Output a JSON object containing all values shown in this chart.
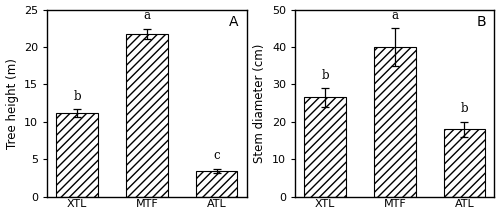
{
  "panel_A": {
    "label": "A",
    "categories": [
      "XTL",
      "MTF",
      "ATL"
    ],
    "values": [
      11.2,
      21.7,
      3.4
    ],
    "errors": [
      0.5,
      0.7,
      0.3
    ],
    "letters": [
      "b",
      "a",
      "c"
    ],
    "ylabel": "Tree height (m)",
    "ylim": [
      0,
      25
    ],
    "yticks": [
      0,
      5,
      10,
      15,
      20,
      25
    ]
  },
  "panel_B": {
    "label": "B",
    "categories": [
      "XTL",
      "MTF",
      "ATL"
    ],
    "values": [
      26.5,
      40.0,
      18.0
    ],
    "errors": [
      2.5,
      5.0,
      2.0
    ],
    "letters": [
      "b",
      "a",
      "b"
    ],
    "ylabel": "Stem diameter (cm)",
    "ylim": [
      0,
      50
    ],
    "yticks": [
      0,
      10,
      20,
      30,
      40,
      50
    ]
  },
  "bar_color": "#ffffff",
  "hatch": "////",
  "edgecolor": "#000000",
  "letter_fontsize": 8.5,
  "panel_label_fontsize": 10,
  "tick_fontsize": 8,
  "ylabel_fontsize": 8.5,
  "bar_width": 0.6,
  "spine_linewidth": 1.0
}
